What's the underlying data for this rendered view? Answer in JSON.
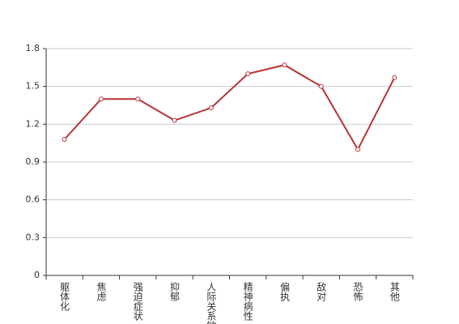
{
  "chart_data": {
    "type": "line",
    "categories": [
      "躯体化",
      "焦虑",
      "强迫症状",
      "抑郁",
      "人际关系敏感",
      "精神病性",
      "偏执",
      "敌对",
      "恐怖",
      "其他"
    ],
    "series": [
      {
        "color": "#b83232",
        "values": [
          1.08,
          1.4,
          1.4,
          1.23,
          1.33,
          1.6,
          1.67,
          1.5,
          1.0,
          1.57
        ]
      }
    ],
    "ylim": [
      0,
      1.8
    ],
    "yticks": [
      0,
      0.3,
      0.6,
      0.9,
      1.2,
      1.5,
      1.8
    ],
    "grid": true
  }
}
